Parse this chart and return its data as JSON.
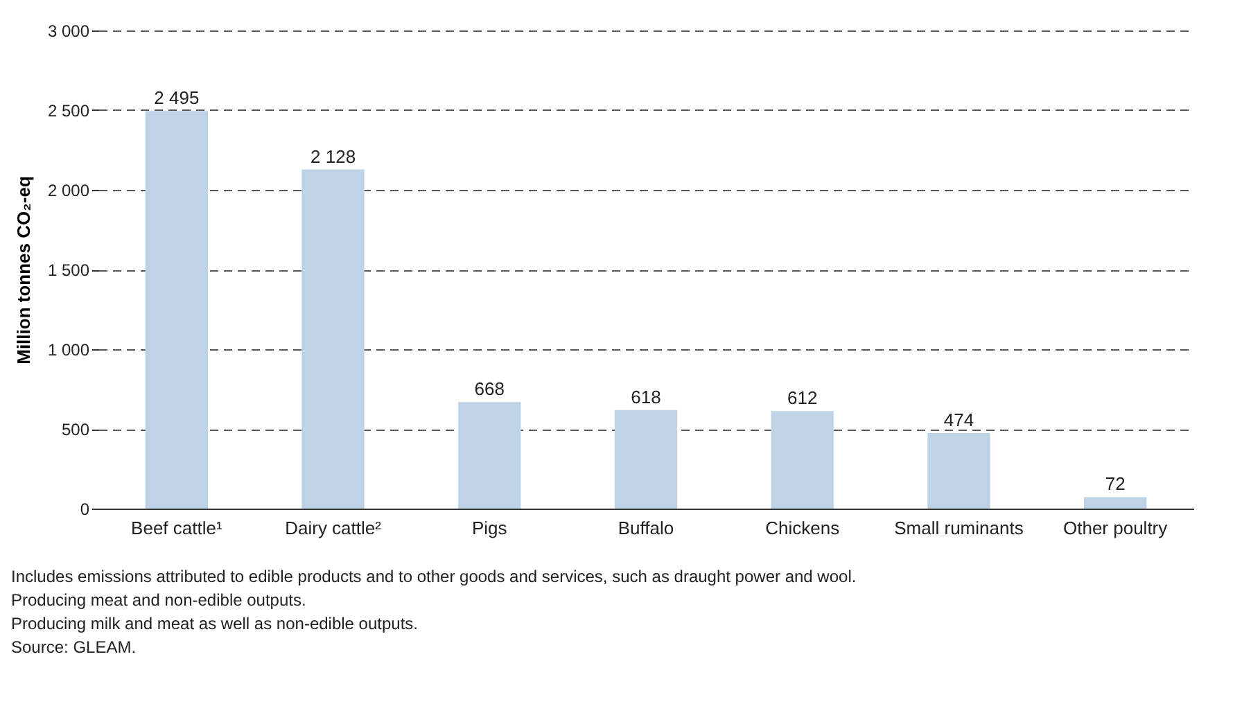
{
  "chart_data": {
    "type": "bar",
    "ylabel": "Million tonnes CO₂-eq",
    "categories": [
      "Beef cattle¹",
      "Dairy cattle²",
      "Pigs",
      "Buffalo",
      "Chickens",
      "Small ruminants",
      "Other poultry"
    ],
    "values": [
      2495,
      2128,
      668,
      618,
      612,
      474,
      72
    ],
    "value_labels": [
      "2 495",
      "2 128",
      "668",
      "618",
      "612",
      "474",
      "72"
    ],
    "color": "#bfd3e6",
    "ylim": [
      0,
      3000
    ],
    "yticks": [
      {
        "value": 0,
        "label": "0"
      },
      {
        "value": 500,
        "label": "500"
      },
      {
        "value": 1000,
        "label": "1 000"
      },
      {
        "value": 1500,
        "label": "1 500"
      },
      {
        "value": 2000,
        "label": "2 000"
      },
      {
        "value": 2500,
        "label": "2 500"
      },
      {
        "value": 3000,
        "label": "3 000"
      }
    ],
    "grid": "y",
    "line_style": "dashed",
    "annotations": [
      "Includes emissions attributed to edible products and to other goods and services, such as draught power and wool.",
      "Producing meat and non-edible outputs.",
      "Producing milk and meat as well as non-edible outputs.",
      "Source: GLEAM."
    ]
  }
}
